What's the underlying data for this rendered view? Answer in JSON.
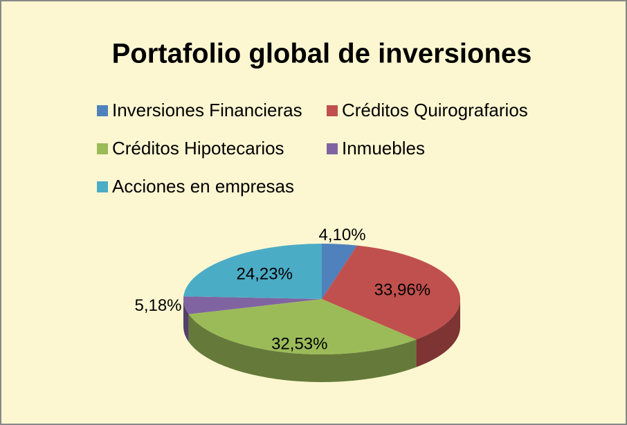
{
  "chart_data": {
    "type": "pie3d",
    "title": "Portafolio global de inversiones",
    "categories": [
      "Inversiones Financieras",
      "Créditos Quirografarios",
      "Créditos Hipotecarios",
      "Inmuebles",
      "Acciones en empresas"
    ],
    "values": [
      4.1,
      33.96,
      32.53,
      5.18,
      24.23
    ],
    "value_labels": [
      "4,10%",
      "33,96%",
      "32,53%",
      "5,18%",
      "24,23%"
    ],
    "colors": [
      "#4f81bd",
      "#c0504d",
      "#9bbb59",
      "#8064a2",
      "#4bacc6"
    ],
    "legend": "top"
  }
}
